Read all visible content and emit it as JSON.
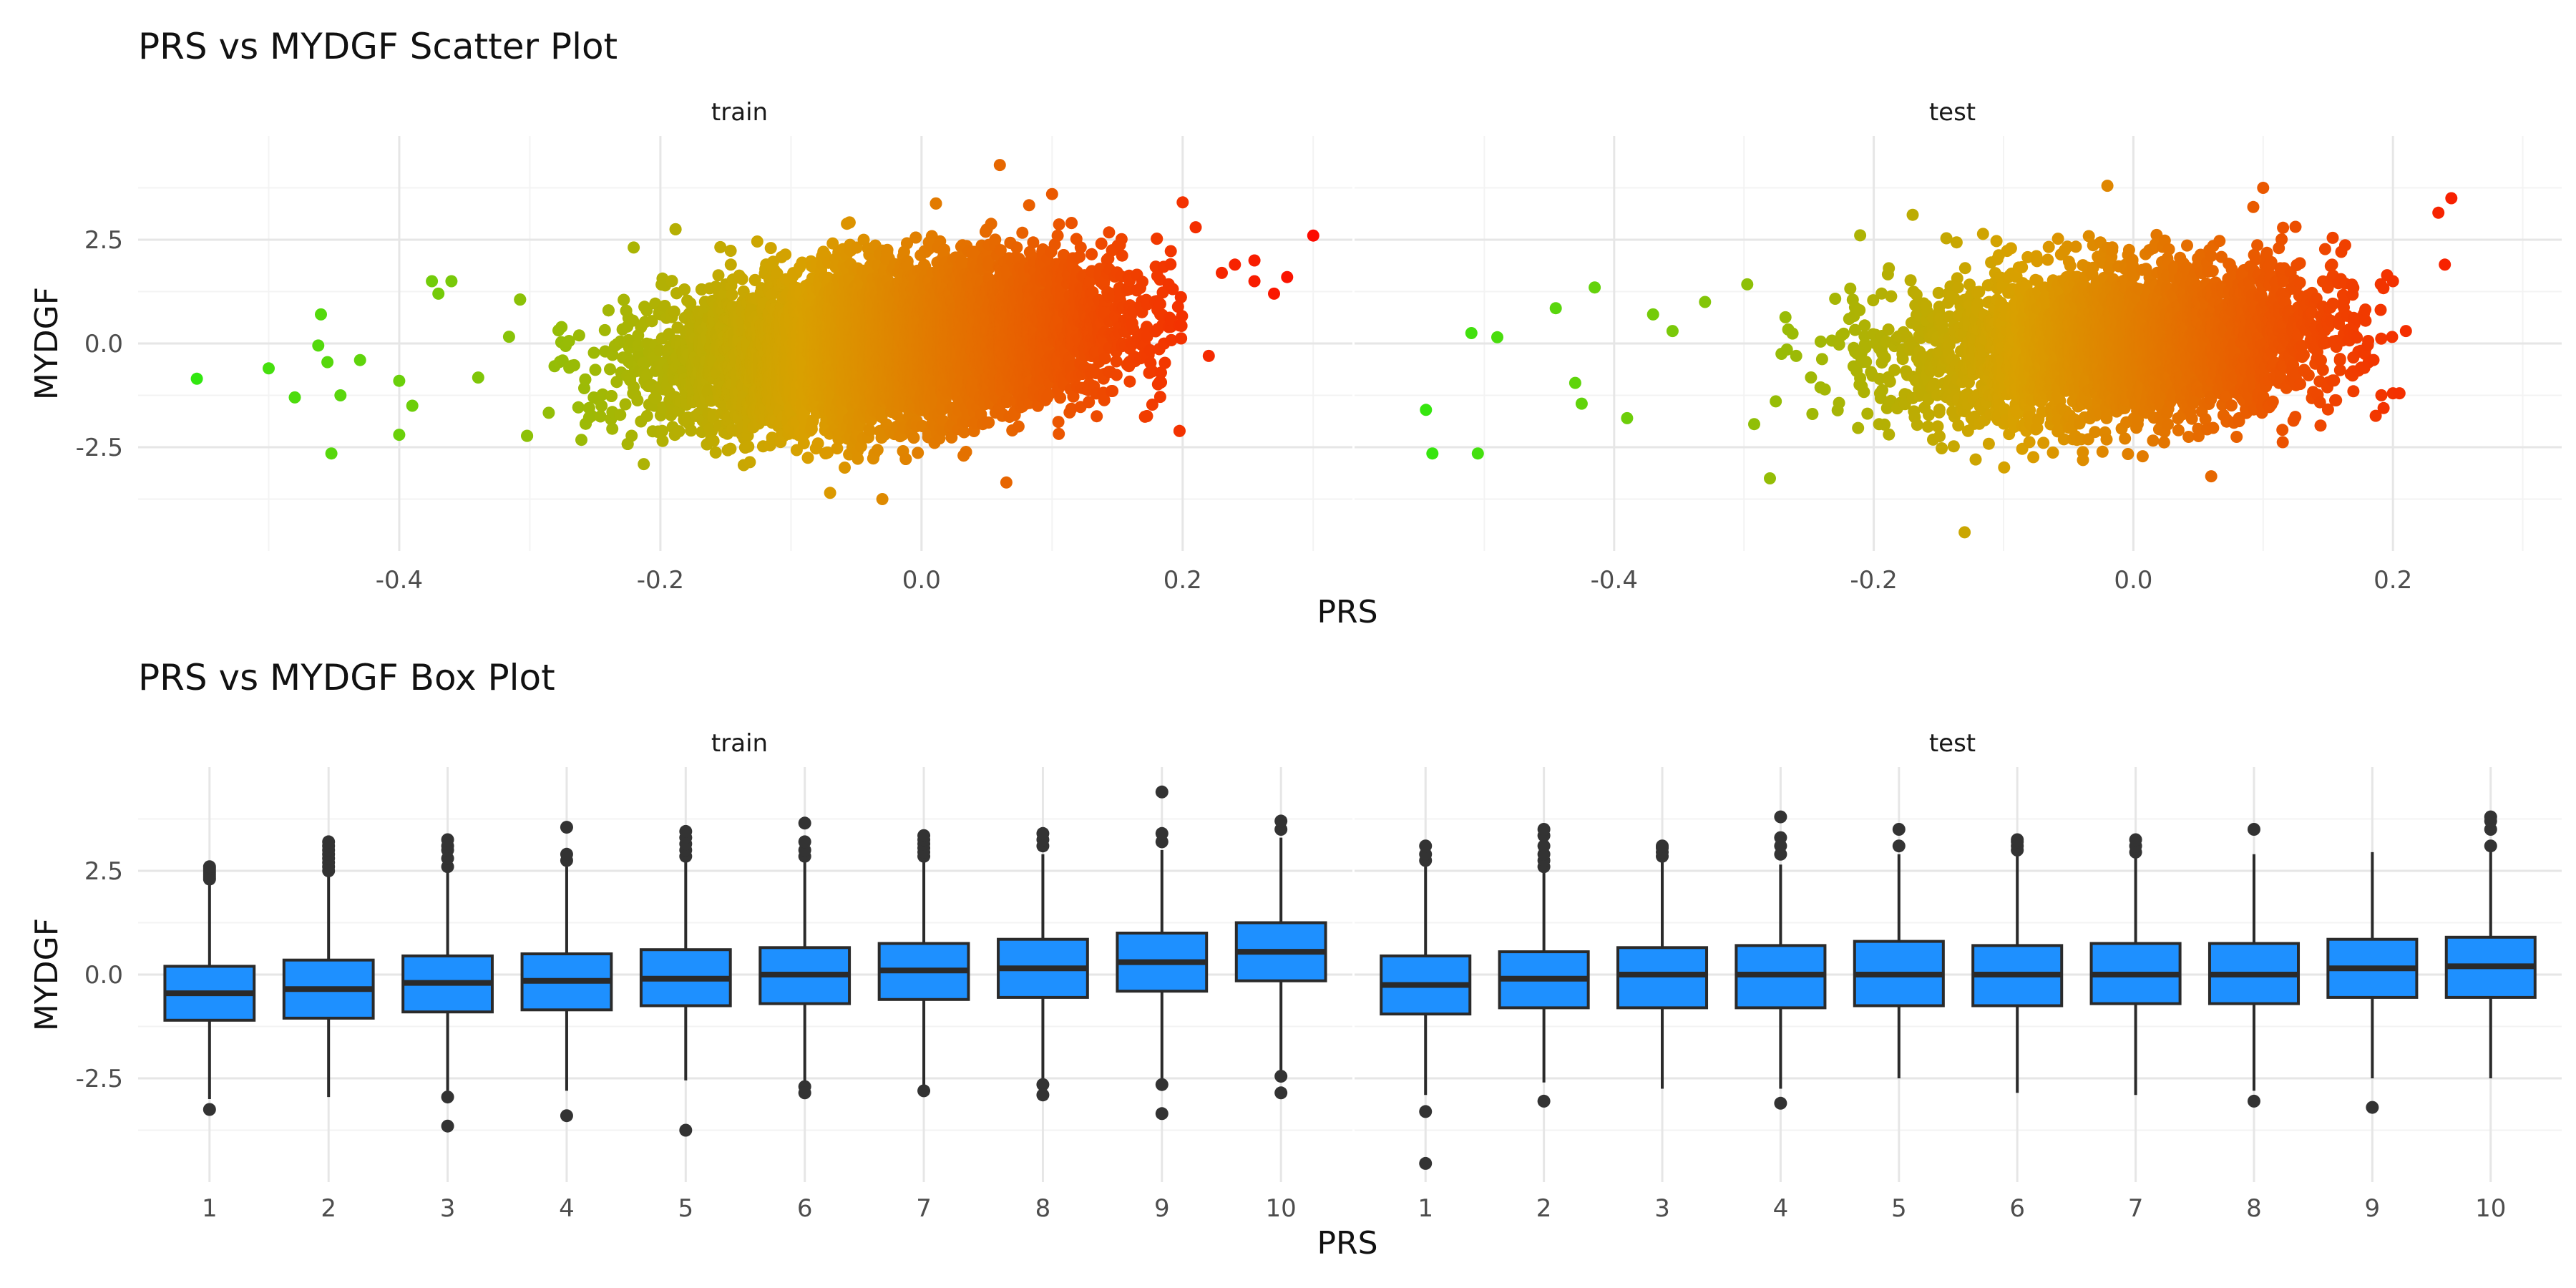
{
  "scatter_title": "PRS vs MYDGF Scatter Plot",
  "box_title": "PRS vs MYDGF Box Plot",
  "colors": {
    "low": "#22ee11",
    "mid": "#d9a000",
    "high": "#ff0000",
    "box_fill": "#1e90ff",
    "box_line": "#2a2a2a",
    "outlier": "#333333",
    "grid_major": "#e6e6e6",
    "grid_minor": "#f3f3f3"
  },
  "chart_data": [
    {
      "type": "scatter",
      "title": "PRS vs MYDGF Scatter Plot",
      "xlabel": "PRS",
      "ylabel": "MYDGF",
      "facets": [
        "train",
        "test"
      ],
      "xlim": [
        -0.6,
        0.33
      ],
      "ylim": [
        -5.0,
        5.0
      ],
      "x_ticks": [
        "-0.4",
        "-0.2",
        "0.0",
        "0.2"
      ],
      "x_tick_values": [
        -0.4,
        -0.2,
        0.0,
        0.2
      ],
      "y_ticks": [
        "2.5",
        "0.0",
        "-2.5"
      ],
      "y_tick_values": [
        2.5,
        0.0,
        -2.5
      ],
      "color_scale": {
        "variable": "PRS",
        "low": "#22ee11",
        "high": "#ff0000"
      },
      "cloud": [
        {
          "facet": "train",
          "n": 9000,
          "x_mean": -0.02,
          "x_sd": 0.085,
          "y_mean": 0.0,
          "y_sd": 0.95,
          "correlation": 0.27
        },
        {
          "facet": "test",
          "n": 3500,
          "x_mean": -0.01,
          "x_sd": 0.085,
          "y_mean": 0.0,
          "y_sd": 0.95,
          "correlation": 0.17
        }
      ],
      "outliers": {
        "train": [
          [
            -0.555,
            -0.85
          ],
          [
            -0.5,
            -0.6
          ],
          [
            -0.48,
            -1.3
          ],
          [
            -0.462,
            -0.05
          ],
          [
            -0.46,
            0.7
          ],
          [
            -0.455,
            -0.45
          ],
          [
            -0.452,
            -2.65
          ],
          [
            -0.445,
            -1.25
          ],
          [
            -0.43,
            -0.4
          ],
          [
            -0.4,
            -0.9
          ],
          [
            -0.4,
            -2.2
          ],
          [
            -0.39,
            -1.5
          ],
          [
            -0.375,
            1.5
          ],
          [
            -0.37,
            1.2
          ],
          [
            -0.36,
            1.5
          ],
          [
            0.06,
            4.3
          ],
          [
            -0.07,
            -3.6
          ],
          [
            -0.03,
            -3.75
          ],
          [
            0.1,
            3.6
          ],
          [
            0.2,
            3.4
          ],
          [
            0.23,
            1.7
          ],
          [
            0.24,
            1.9
          ],
          [
            0.255,
            1.5
          ],
          [
            0.255,
            2.0
          ],
          [
            0.27,
            1.2
          ],
          [
            0.28,
            1.6
          ],
          [
            0.3,
            2.6
          ],
          [
            0.22,
            -0.3
          ],
          [
            0.21,
            2.8
          ],
          [
            0.065,
            -3.35
          ]
        ],
        "test": [
          [
            -0.545,
            -1.6
          ],
          [
            -0.54,
            -2.65
          ],
          [
            -0.505,
            -2.65
          ],
          [
            -0.51,
            0.25
          ],
          [
            -0.49,
            0.15
          ],
          [
            -0.445,
            0.85
          ],
          [
            -0.43,
            -0.95
          ],
          [
            -0.425,
            -1.45
          ],
          [
            -0.415,
            1.35
          ],
          [
            -0.39,
            -1.8
          ],
          [
            -0.37,
            0.7
          ],
          [
            -0.355,
            0.3
          ],
          [
            -0.33,
            1.0
          ],
          [
            -0.28,
            -3.25
          ],
          [
            -0.17,
            3.1
          ],
          [
            -0.13,
            -4.55
          ],
          [
            -0.02,
            3.8
          ],
          [
            0.1,
            3.75
          ],
          [
            0.2,
            -1.2
          ],
          [
            0.205,
            -1.2
          ],
          [
            0.235,
            3.15
          ],
          [
            0.24,
            1.9
          ],
          [
            0.245,
            3.5
          ],
          [
            0.21,
            0.3
          ],
          [
            0.2,
            1.5
          ],
          [
            0.06,
            -3.2
          ]
        ]
      }
    },
    {
      "type": "box",
      "title": "PRS vs MYDGF Box Plot",
      "xlabel": "PRS",
      "ylabel": "MYDGF",
      "facets": [
        "train",
        "test"
      ],
      "categories": [
        "1",
        "2",
        "3",
        "4",
        "5",
        "6",
        "7",
        "8",
        "9",
        "10"
      ],
      "ylim": [
        -5.0,
        5.0
      ],
      "y_ticks": [
        "2.5",
        "0.0",
        "-2.5"
      ],
      "y_tick_values": [
        2.5,
        0.0,
        -2.5
      ],
      "series": [
        {
          "facet": "train",
          "boxes": [
            {
              "q1": -1.1,
              "median": -0.45,
              "q3": 0.2,
              "lower": -3.0,
              "upper": 2.2,
              "outliers": [
                2.3,
                2.35,
                2.4,
                2.45,
                2.5,
                2.55,
                2.6,
                -3.25
              ]
            },
            {
              "q1": -1.05,
              "median": -0.35,
              "q3": 0.35,
              "lower": -2.95,
              "upper": 2.4,
              "outliers": [
                2.5,
                2.6,
                2.7,
                2.8,
                2.9,
                3.0,
                3.1,
                3.2
              ]
            },
            {
              "q1": -0.9,
              "median": -0.2,
              "q3": 0.45,
              "lower": -2.8,
              "upper": 2.5,
              "outliers": [
                2.6,
                2.8,
                3.0,
                3.1,
                3.25,
                -2.95,
                -3.65
              ]
            },
            {
              "q1": -0.85,
              "median": -0.15,
              "q3": 0.5,
              "lower": -2.8,
              "upper": 2.6,
              "outliers": [
                2.75,
                2.9,
                3.55,
                -3.4
              ]
            },
            {
              "q1": -0.75,
              "median": -0.1,
              "q3": 0.6,
              "lower": -2.55,
              "upper": 2.7,
              "outliers": [
                2.85,
                3.0,
                3.15,
                3.3,
                3.45,
                -3.75
              ]
            },
            {
              "q1": -0.7,
              "median": 0.0,
              "q3": 0.65,
              "lower": -2.6,
              "upper": 2.7,
              "outliers": [
                2.85,
                3.0,
                3.2,
                3.65,
                -2.7,
                -2.85
              ]
            },
            {
              "q1": -0.6,
              "median": 0.1,
              "q3": 0.75,
              "lower": -2.7,
              "upper": 2.75,
              "outliers": [
                2.85,
                2.95,
                3.05,
                3.15,
                3.25,
                3.35,
                -2.8
              ]
            },
            {
              "q1": -0.55,
              "median": 0.15,
              "q3": 0.85,
              "lower": -2.6,
              "upper": 2.9,
              "outliers": [
                3.1,
                3.25,
                3.4,
                -2.65,
                -2.9
              ]
            },
            {
              "q1": -0.4,
              "median": 0.3,
              "q3": 1.0,
              "lower": -2.55,
              "upper": 3.0,
              "outliers": [
                3.2,
                3.4,
                4.4,
                -2.65,
                -3.35
              ]
            },
            {
              "q1": -0.15,
              "median": 0.55,
              "q3": 1.25,
              "lower": -2.35,
              "upper": 3.3,
              "outliers": [
                3.5,
                3.7,
                -2.45,
                -2.85
              ]
            }
          ]
        },
        {
          "facet": "test",
          "boxes": [
            {
              "q1": -0.95,
              "median": -0.25,
              "q3": 0.45,
              "lower": -2.9,
              "upper": 2.6,
              "outliers": [
                2.75,
                2.9,
                3.1,
                -3.3,
                -4.55
              ]
            },
            {
              "q1": -0.8,
              "median": -0.1,
              "q3": 0.55,
              "lower": -2.6,
              "upper": 2.5,
              "outliers": [
                2.6,
                2.75,
                2.9,
                3.1,
                3.35,
                3.5,
                -3.05
              ]
            },
            {
              "q1": -0.8,
              "median": 0.0,
              "q3": 0.65,
              "lower": -2.75,
              "upper": 2.75,
              "outliers": [
                2.85,
                2.95,
                3.05,
                3.1
              ]
            },
            {
              "q1": -0.8,
              "median": 0.0,
              "q3": 0.7,
              "lower": -2.75,
              "upper": 2.65,
              "outliers": [
                2.9,
                3.1,
                3.3,
                3.8,
                -3.1
              ]
            },
            {
              "q1": -0.75,
              "median": 0.0,
              "q3": 0.8,
              "lower": -2.5,
              "upper": 2.9,
              "outliers": [
                3.1,
                3.5
              ]
            },
            {
              "q1": -0.75,
              "median": 0.0,
              "q3": 0.7,
              "lower": -2.85,
              "upper": 2.9,
              "outliers": [
                3.0,
                3.1,
                3.2,
                3.25
              ]
            },
            {
              "q1": -0.7,
              "median": 0.0,
              "q3": 0.75,
              "lower": -2.9,
              "upper": 2.85,
              "outliers": [
                2.95,
                3.1,
                3.25
              ]
            },
            {
              "q1": -0.7,
              "median": 0.0,
              "q3": 0.75,
              "lower": -2.8,
              "upper": 2.9,
              "outliers": [
                3.5,
                -3.05
              ]
            },
            {
              "q1": -0.55,
              "median": 0.15,
              "q3": 0.85,
              "lower": -2.5,
              "upper": 2.95,
              "outliers": [
                -3.2
              ]
            },
            {
              "q1": -0.55,
              "median": 0.2,
              "q3": 0.9,
              "lower": -2.5,
              "upper": 3.0,
              "outliers": [
                3.1,
                3.5,
                3.7,
                3.8
              ]
            }
          ]
        }
      ]
    }
  ]
}
